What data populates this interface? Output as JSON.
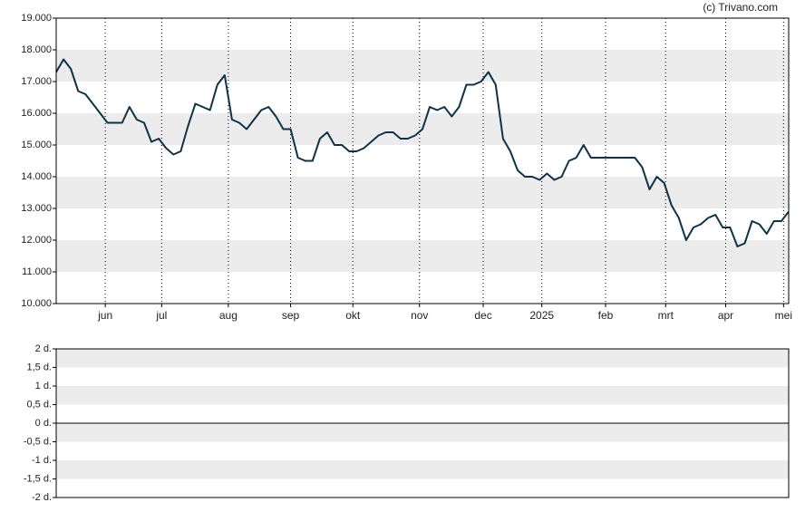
{
  "chart_data": [
    {
      "type": "line",
      "annotation": "(c) Trivano.com",
      "color": "#0d3349",
      "grid": true,
      "xlim": [
        0,
        100
      ],
      "xticks": [
        {
          "value": 6.7,
          "label": "jun"
        },
        {
          "value": 14.4,
          "label": "jul"
        },
        {
          "value": 23.5,
          "label": "aug"
        },
        {
          "value": 32,
          "label": "sep"
        },
        {
          "value": 40.5,
          "label": "okt"
        },
        {
          "value": 49.6,
          "label": "nov"
        },
        {
          "value": 58.3,
          "label": "dec"
        },
        {
          "value": 66.3,
          "label": "2025"
        },
        {
          "value": 75,
          "label": "feb"
        },
        {
          "value": 83.2,
          "label": "mrt"
        },
        {
          "value": 91.4,
          "label": "apr"
        },
        {
          "value": 99.3,
          "label": "mei"
        }
      ],
      "ylim": [
        10000,
        19000
      ],
      "yticks": [
        {
          "value": 10000,
          "label": "10.000"
        },
        {
          "value": 11000,
          "label": "11.000"
        },
        {
          "value": 12000,
          "label": "12.000"
        },
        {
          "value": 13000,
          "label": "13.000"
        },
        {
          "value": 14000,
          "label": "14.000"
        },
        {
          "value": 15000,
          "label": "15.000"
        },
        {
          "value": 16000,
          "label": "16.000"
        },
        {
          "value": 17000,
          "label": "17.000"
        },
        {
          "value": 18000,
          "label": "18.000"
        },
        {
          "value": 19000,
          "label": "19.000"
        }
      ],
      "values": [
        17300,
        17700,
        17400,
        16700,
        16600,
        16300,
        16000,
        15700,
        15700,
        15700,
        16200,
        15800,
        15700,
        15100,
        15200,
        14900,
        14700,
        14800,
        15600,
        16300,
        16200,
        16100,
        16900,
        17200,
        15800,
        15700,
        15500,
        15800,
        16100,
        16200,
        15900,
        15500,
        15500,
        14600,
        14500,
        14500,
        15200,
        15400,
        15000,
        15000,
        14800,
        14800,
        14900,
        15100,
        15300,
        15400,
        15400,
        15200,
        15200,
        15300,
        15500,
        16200,
        16100,
        16200,
        15900,
        16200,
        16900,
        16900,
        17000,
        17300,
        16900,
        15200,
        14800,
        14200,
        14000,
        14000,
        13900,
        14100,
        13900,
        14000,
        14500,
        14600,
        15000,
        14600,
        14600,
        14600,
        14600,
        14600,
        14600,
        14600,
        14300,
        13600,
        14000,
        13800,
        13100,
        12700,
        12000,
        12400,
        12500,
        12700,
        12800,
        12400,
        12400,
        11800,
        11900,
        12600,
        12500,
        12200,
        12600,
        12600,
        12900
      ]
    },
    {
      "type": "line",
      "ylim": [
        -2,
        2
      ],
      "yticks": [
        {
          "value": -2,
          "label": "-2 d."
        },
        {
          "value": -1.5,
          "label": "-1,5 d."
        },
        {
          "value": -1,
          "label": "-1 d."
        },
        {
          "value": -0.5,
          "label": "-0,5 d."
        },
        {
          "value": 0,
          "label": "0 d."
        },
        {
          "value": 0.5,
          "label": "0,5 d."
        },
        {
          "value": 1,
          "label": "1 d."
        },
        {
          "value": 1.5,
          "label": "1,5 d."
        },
        {
          "value": 2,
          "label": "2 d."
        }
      ]
    }
  ]
}
